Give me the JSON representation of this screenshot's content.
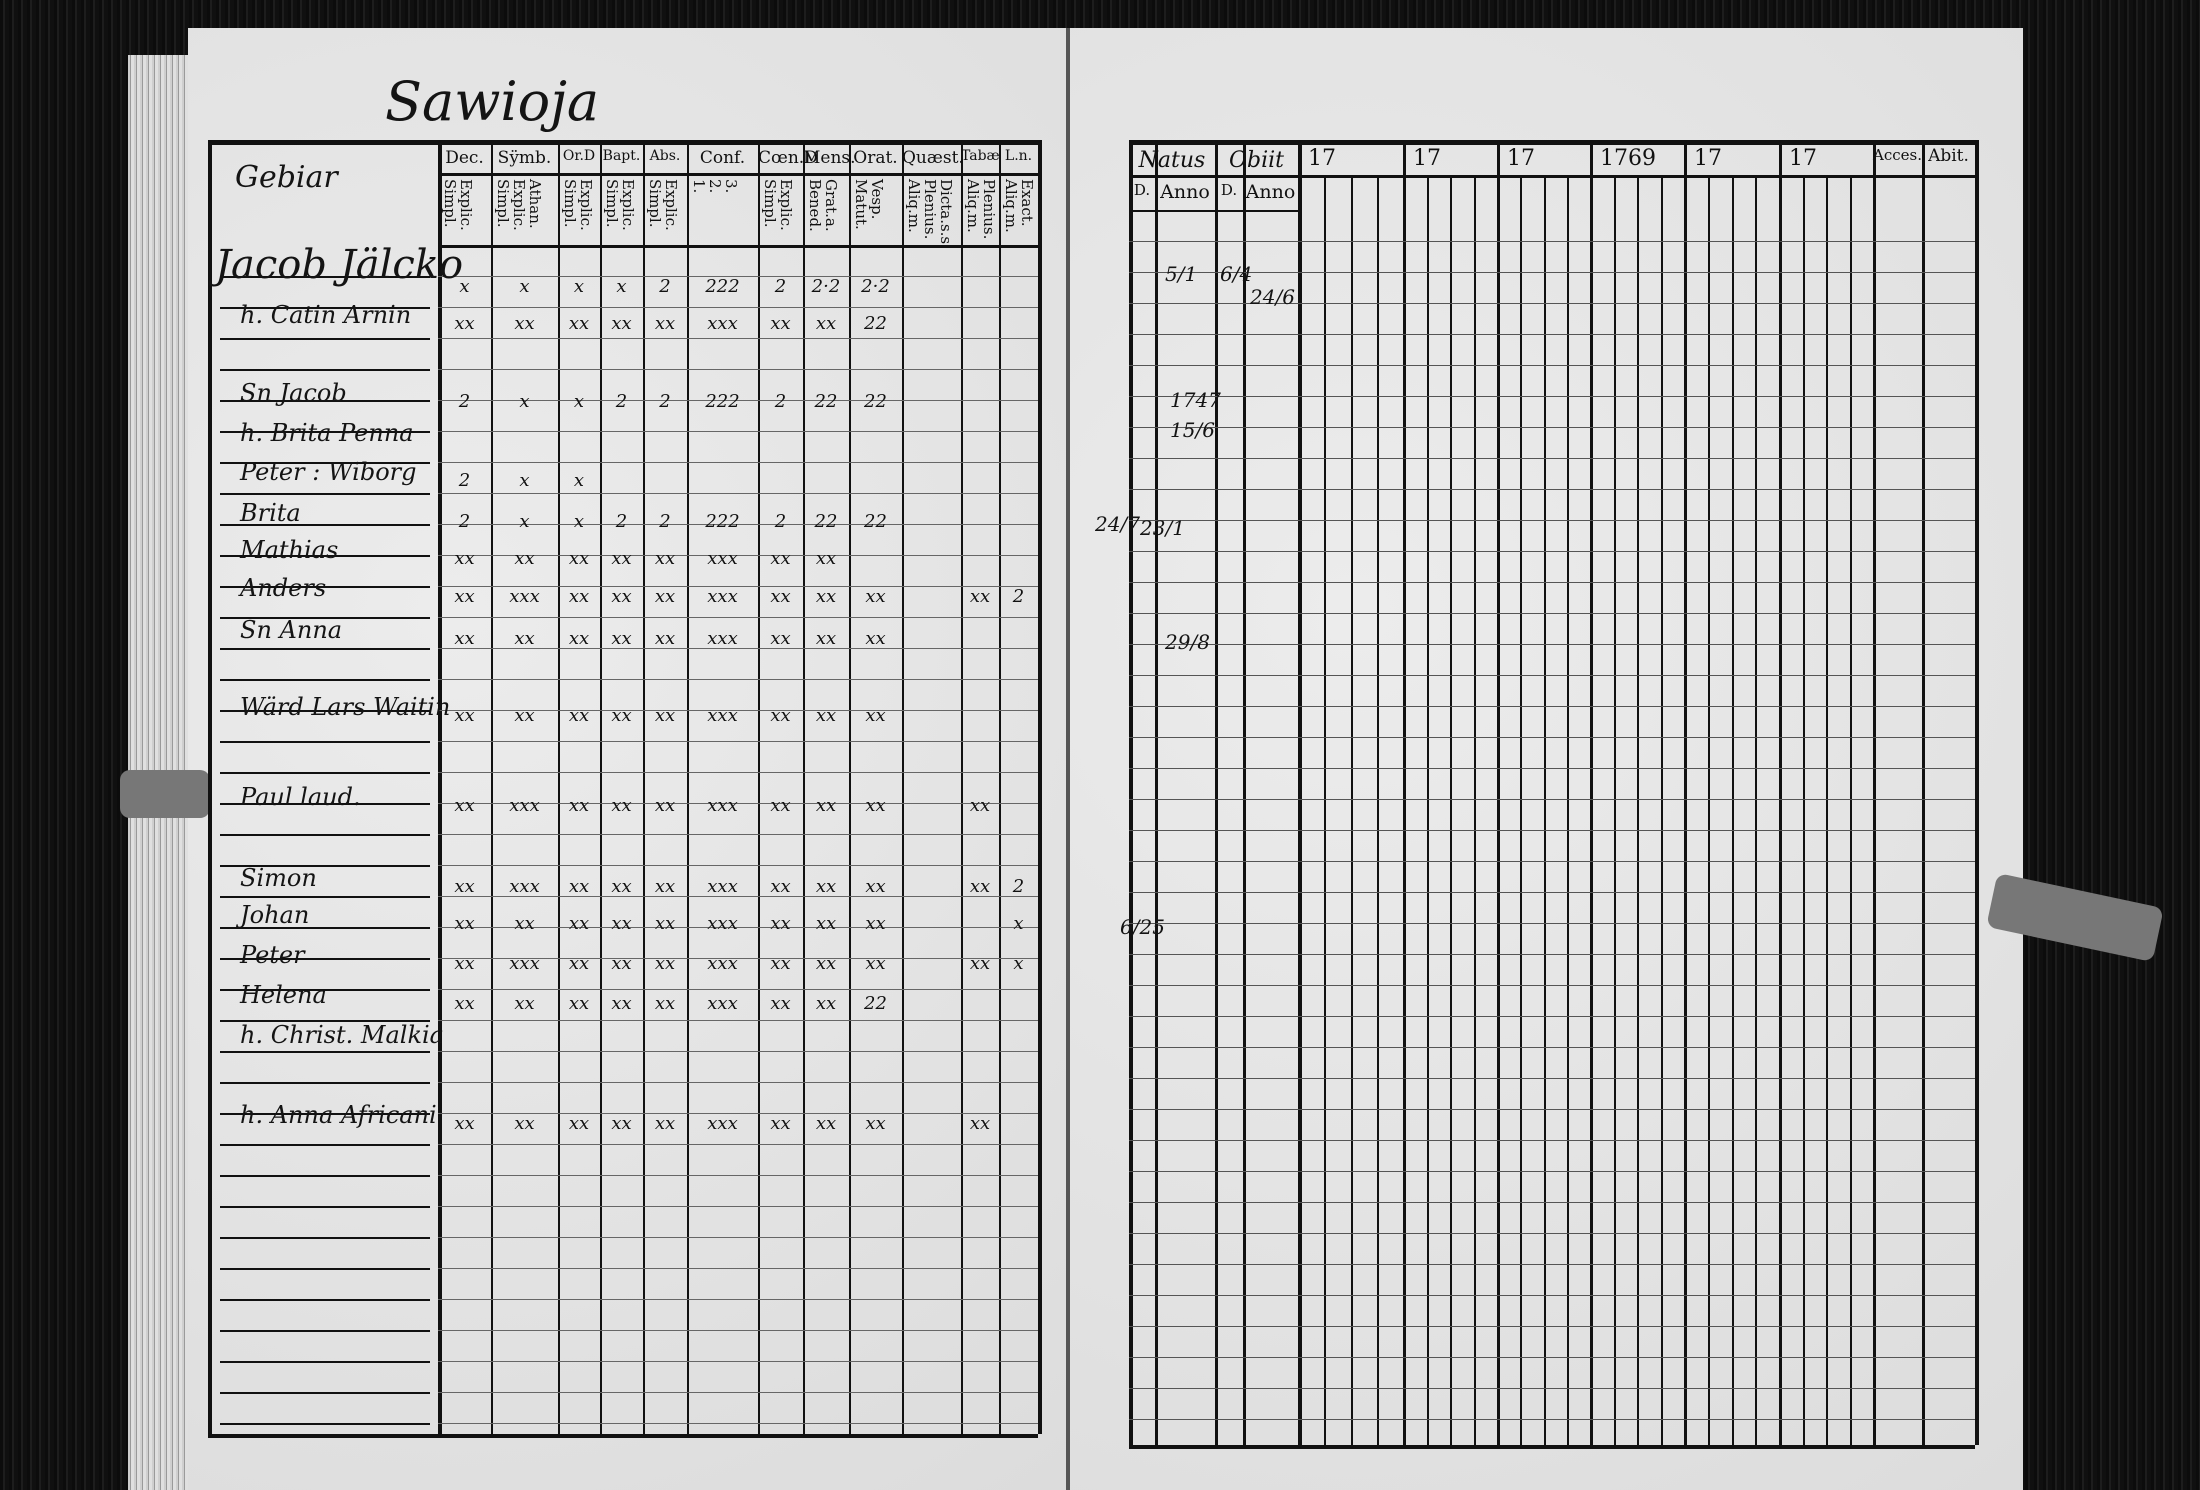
{
  "document": {
    "page_heading": "Sawioja",
    "left_page": {
      "name_column_heading": "Gebiar",
      "column_headers": [
        {
          "top": "Dec.",
          "sub": "Explic.\nSimpl."
        },
        {
          "top": "Sÿmb.",
          "sub": "Athan.\nExplic.\nSimpl."
        },
        {
          "top": "Or.D",
          "sub": "Explic.\nSimpl."
        },
        {
          "top": "Bapt.",
          "sub": "Explic.\nSimpl."
        },
        {
          "top": "Abs.",
          "sub": "Explic.\nSimpl."
        },
        {
          "top": "Conf.",
          "sub": "3.\n2.\n1."
        },
        {
          "top": "Cœn.D",
          "sub": "Explic.\nSimpl."
        },
        {
          "top": "Mens.",
          "sub": "Grat.a.\nBened."
        },
        {
          "top": "Orat.",
          "sub": "Vesp.\nMatut."
        },
        {
          "top": "Quæst.",
          "sub": "Dicta.s.s.\nPlenius.\nAliq.m."
        },
        {
          "top": "Tabæ",
          "sub": "Plenius.\nAliq.m."
        },
        {
          "top": "L.n.",
          "sub": "Exact.\nAliq.m."
        }
      ],
      "entries": [
        {
          "name": "Jacob Jälcko",
          "big": true,
          "marks": [
            "x",
            "x",
            "x",
            "x",
            "2",
            "222",
            "2",
            "2·2",
            "2·2",
            "",
            "",
            ""
          ]
        },
        {
          "name": "h. Catin Arnin",
          "marks": [
            "xx",
            "xx",
            "xx",
            "xx",
            "xx",
            "xxx",
            "xx",
            "xx",
            "22",
            "",
            "",
            ""
          ]
        },
        {
          "name": "Sn Jacob",
          "marks": [
            "2",
            "x",
            "x",
            "2",
            "2",
            "222",
            "2",
            "22",
            "22",
            "",
            "",
            ""
          ]
        },
        {
          "name": "h. Brita Penna",
          "marks": [
            "",
            "",
            "",
            "",
            "",
            "",
            "",
            "",
            "",
            "",
            "",
            ""
          ]
        },
        {
          "name": "Peter : Wiborg",
          "marks": [
            "2",
            "x",
            "x",
            "",
            "",
            "",
            "",
            "",
            "",
            "",
            "",
            ""
          ]
        },
        {
          "name": "Brita",
          "marks": [
            "2",
            "x",
            "x",
            "2",
            "2",
            "222",
            "2",
            "22",
            "22",
            "",
            "",
            ""
          ]
        },
        {
          "name": "Mathias",
          "marks": [
            "xx",
            "xx",
            "xx",
            "xx",
            "xx",
            "xxx",
            "xx",
            "xx",
            "",
            "",
            "",
            ""
          ]
        },
        {
          "name": "Anders",
          "marks": [
            "xx",
            "xxx",
            "xx",
            "xx",
            "xx",
            "xxx",
            "xx",
            "xx",
            "xx",
            "",
            "xx",
            "2"
          ]
        },
        {
          "name": "Sn Anna",
          "marks": [
            "xx",
            "xx",
            "xx",
            "xx",
            "xx",
            "xxx",
            "xx",
            "xx",
            "xx",
            "",
            "",
            ""
          ]
        },
        {
          "name": "Wärd Lars Waitin",
          "marks": [
            "xx",
            "xx",
            "xx",
            "xx",
            "xx",
            "xxx",
            "xx",
            "xx",
            "xx",
            "",
            "",
            ""
          ]
        },
        {
          "name": "Paul laud.",
          "marks": [
            "xx",
            "xxx",
            "xx",
            "xx",
            "xx",
            "xxx",
            "xx",
            "xx",
            "xx",
            "",
            "xx",
            ""
          ]
        },
        {
          "name": "Simon",
          "marks": [
            "xx",
            "xxx",
            "xx",
            "xx",
            "xx",
            "xxx",
            "xx",
            "xx",
            "xx",
            "",
            "xx",
            "2"
          ]
        },
        {
          "name": "Johan",
          "marks": [
            "xx",
            "xx",
            "xx",
            "xx",
            "xx",
            "xxx",
            "xx",
            "xx",
            "xx",
            "",
            "",
            "x"
          ]
        },
        {
          "name": "Peter",
          "marks": [
            "xx",
            "xxx",
            "xx",
            "xx",
            "xx",
            "xxx",
            "xx",
            "xx",
            "xx",
            "",
            "xx",
            "x"
          ]
        },
        {
          "name": "Helena",
          "marks": [
            "xx",
            "xx",
            "xx",
            "xx",
            "xx",
            "xxx",
            "xx",
            "xx",
            "22",
            "",
            "",
            ""
          ]
        },
        {
          "name": "h. Christ. Malkia",
          "marks": [
            "",
            "",
            "",
            "",
            "",
            "",
            "",
            "",
            "",
            "",
            "",
            ""
          ]
        },
        {
          "name": "h. Anna Africani",
          "marks": [
            "xx",
            "xx",
            "xx",
            "xx",
            "xx",
            "xxx",
            "xx",
            "xx",
            "xx",
            "",
            "xx",
            ""
          ]
        }
      ]
    },
    "right_page": {
      "headers": {
        "natus": "Natus",
        "obiit": "Obiit",
        "d": "D.",
        "anno": "Anno",
        "years": [
          "17",
          "17",
          "17",
          "1769",
          "17",
          "17"
        ],
        "acces": "Acces.",
        "abit": "Abit."
      },
      "notes": [
        "5/1",
        "6/4",
        "24/6",
        "1747",
        "15/6",
        "24/7",
        "23/1",
        "29/8",
        "6/25"
      ]
    }
  }
}
